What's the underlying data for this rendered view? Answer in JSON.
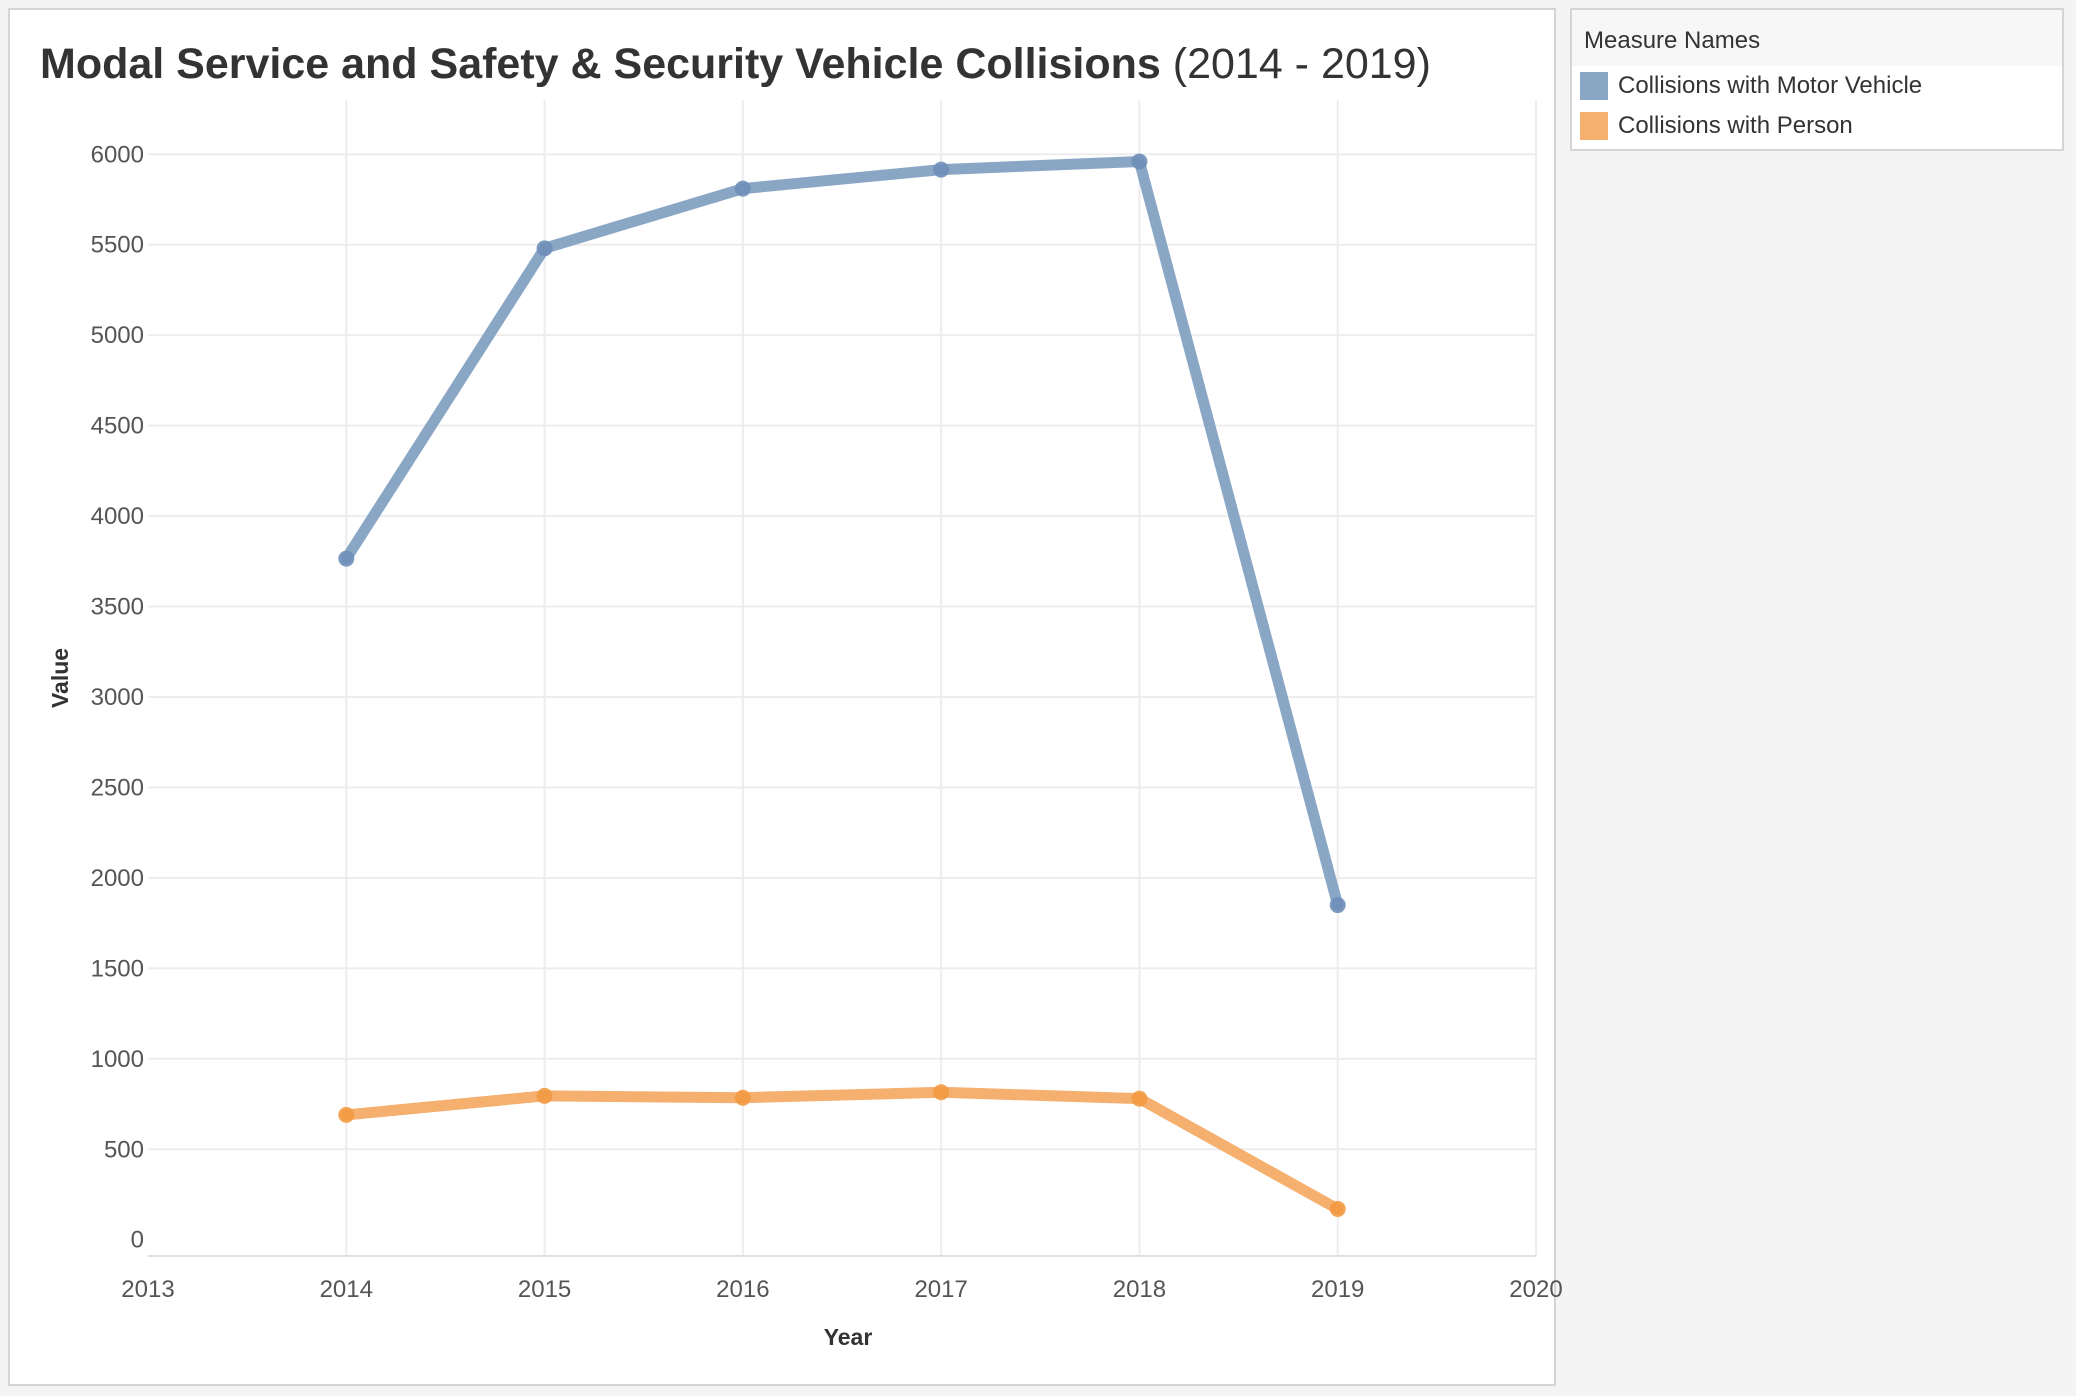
{
  "chart_data": {
    "type": "line",
    "title": "Modal Service and Safety & Security Vehicle Collisions",
    "subtitle": "(2014 - 2019)",
    "xlabel": "Year",
    "ylabel": "Value",
    "x": [
      2014,
      2015,
      2016,
      2017,
      2018,
      2019
    ],
    "xlim": [
      2013,
      2020
    ],
    "x_ticks": [
      "2013",
      "2014",
      "2015",
      "2016",
      "2017",
      "2018",
      "2019",
      "2020"
    ],
    "ylim": [
      -90,
      6300
    ],
    "y_ticks": [
      "0",
      "500",
      "1000",
      "1500",
      "2000",
      "2500",
      "3000",
      "3500",
      "4000",
      "4500",
      "5000",
      "5500",
      "6000"
    ],
    "grid": true,
    "legend": {
      "title": "Measure Names",
      "placement": "top-right, outside plot"
    },
    "series": [
      {
        "name": "Collisions with Motor Vehicle",
        "color": "#8aa6c5",
        "point_color": "#6e8fb8",
        "values": [
          3765,
          5480,
          5810,
          5915,
          5960,
          1850
        ]
      },
      {
        "name": "Collisions with Person",
        "color": "#f5b06f",
        "point_color": "#f29a43",
        "values": [
          690,
          795,
          785,
          815,
          780,
          170
        ]
      }
    ]
  }
}
